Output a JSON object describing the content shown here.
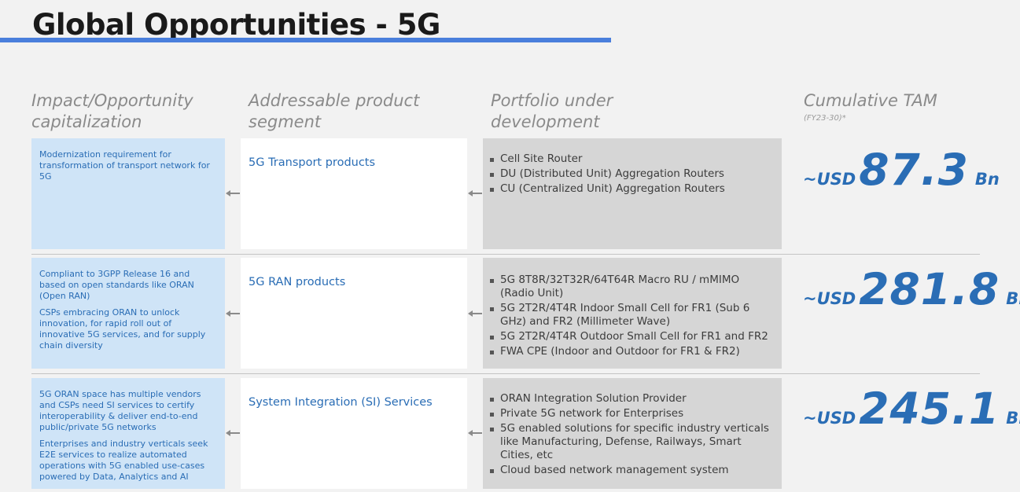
{
  "title": "Global Opportunities - 5G",
  "headers": {
    "impact": "Impact/Opportunity\ncapitalization",
    "segment": "Addressable product\nsegment",
    "portfolio": "Portfolio under\ndevelopment",
    "tam": "Cumulative TAM",
    "tam_note": "(FY23-30)*"
  },
  "rows": [
    {
      "impact": [
        "Modernization requirement for transformation of transport network for 5G"
      ],
      "segment": "5G Transport products",
      "portfolio": [
        "Cell Site Router",
        "DU (Distributed Unit) Aggregation Routers",
        "CU (Centralized Unit) Aggregation Routers"
      ],
      "tam_prefix": "~USD",
      "tam_value": "87.3",
      "tam_unit": "Bn"
    },
    {
      "impact": [
        "Compliant to 3GPP Release 16 and based on open standards like ORAN (Open RAN)",
        "CSPs embracing ORAN to unlock innovation, for rapid roll out of innovative 5G services, and for supply chain diversity"
      ],
      "segment": "5G RAN products",
      "portfolio": [
        "5G 8T8R/32T32R/64T64R Macro RU / mMIMO (Radio Unit)",
        "5G 2T2R/4T4R Indoor Small Cell for FR1 (Sub 6 GHz) and FR2 (Millimeter Wave)",
        "5G 2T2R/4T4R Outdoor Small Cell for FR1 and FR2",
        "FWA CPE (Indoor and Outdoor for FR1 & FR2)"
      ],
      "tam_prefix": "~USD",
      "tam_value": "281.8",
      "tam_unit": "Bn"
    },
    {
      "impact": [
        "5G ORAN space has multiple vendors and CSPs need SI services to certify interoperability & deliver end-to-end public/private 5G networks",
        "Enterprises and industry verticals seek E2E services to realize automated operations with 5G enabled use-cases powered by Data, Analytics and AI"
      ],
      "segment": "System Integration  (SI) Services",
      "portfolio": [
        "ORAN Integration Solution Provider",
        "Private 5G network for Enterprises",
        "5G enabled solutions for specific industry verticals like Manufacturing, Defense, Railways, Smart Cities, etc",
        "Cloud based network management system"
      ],
      "tam_prefix": "~USD",
      "tam_value": "245.1",
      "tam_unit": "Bn"
    }
  ]
}
